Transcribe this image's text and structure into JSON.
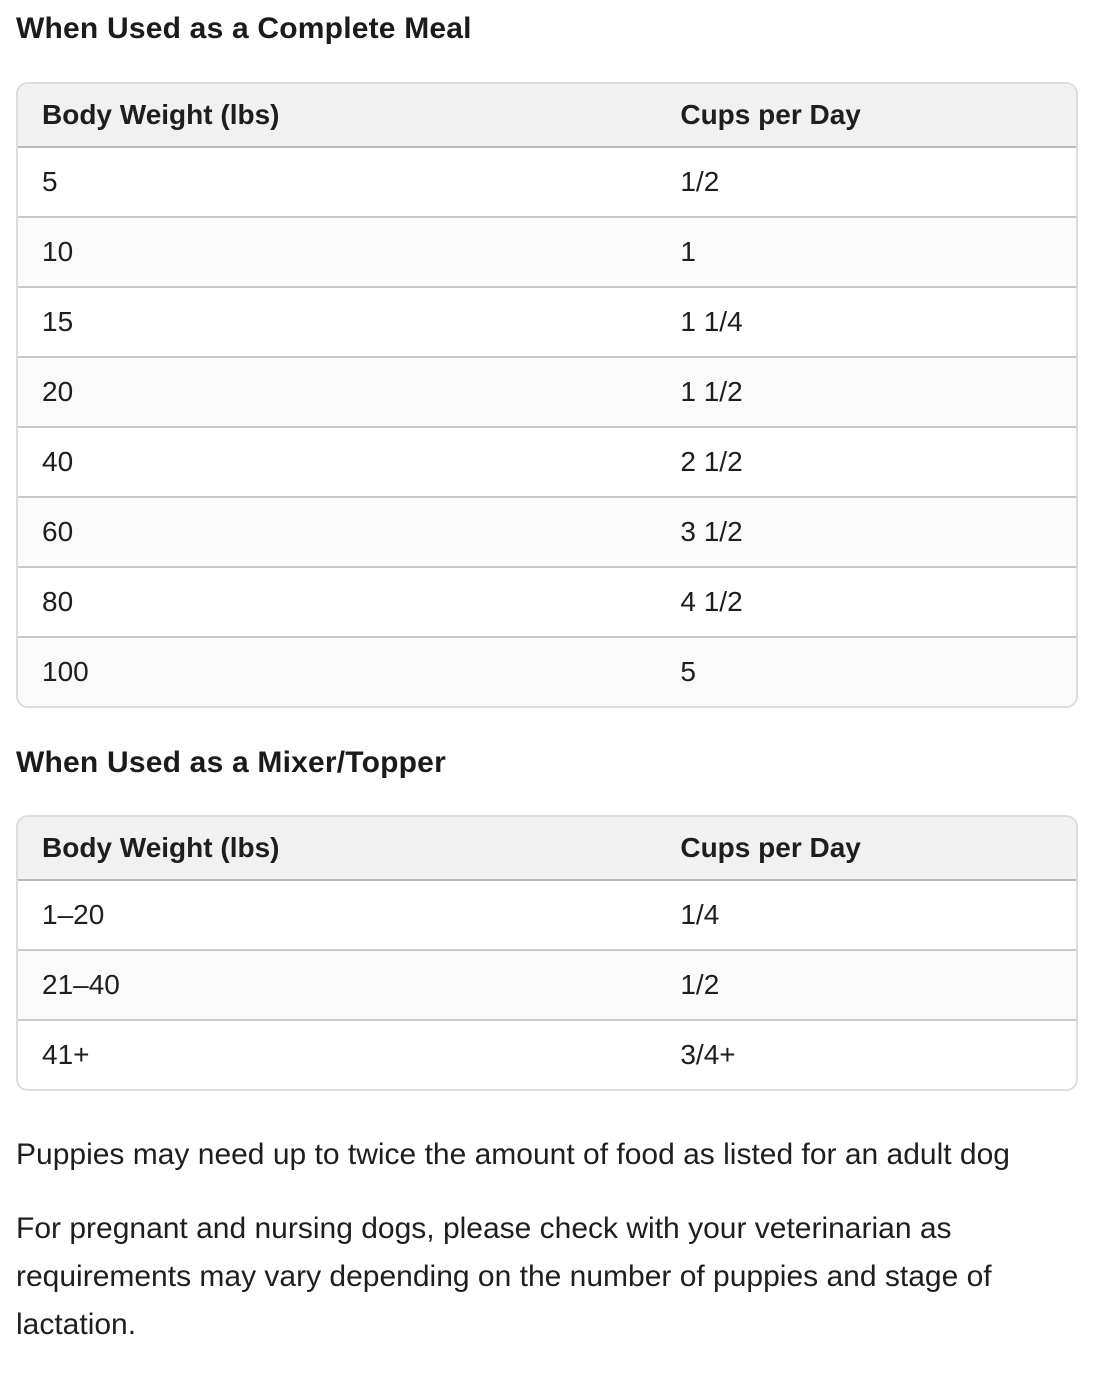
{
  "colors": {
    "text": "#1e1e1e",
    "heading_text": "#1b1b1b",
    "table_header_bg": "#f1f1f1",
    "row_stripe_bg": "#fafafa",
    "row_border": "#c9c9c9",
    "header_border": "#b9b9b9",
    "table_outer_border": "#dcdcdc",
    "page_bg": "#ffffff"
  },
  "sections": [
    {
      "heading": "When Used as a Complete Meal",
      "table": {
        "columns": [
          "Body Weight (lbs)",
          "Cups per Day"
        ],
        "rows": [
          [
            "5",
            "1/2"
          ],
          [
            "10",
            "1"
          ],
          [
            "15",
            "1 1/4"
          ],
          [
            "20",
            "1 1/2"
          ],
          [
            "40",
            "2 1/2"
          ],
          [
            "60",
            "3 1/2"
          ],
          [
            "80",
            "4 1/2"
          ],
          [
            "100",
            "5"
          ]
        ]
      }
    },
    {
      "heading": "When Used as a Mixer/Topper",
      "table": {
        "columns": [
          "Body Weight (lbs)",
          "Cups per Day"
        ],
        "rows": [
          [
            "1–20",
            "1/4"
          ],
          [
            "21–40",
            "1/2"
          ],
          [
            "41+",
            "3/4+"
          ]
        ]
      }
    }
  ],
  "notes": [
    "Puppies may need up to twice the amount of food as listed for an adult dog",
    "For pregnant and nursing dogs, please check with your veterinarian as requirements may vary depending on the number of puppies and stage of lactation."
  ]
}
